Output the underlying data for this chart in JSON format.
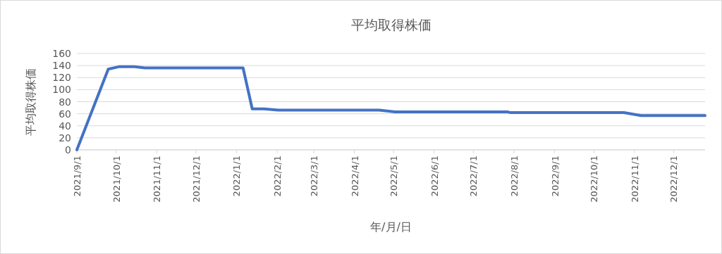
{
  "chart_data": {
    "type": "line",
    "title": "平均取得株価",
    "xlabel": "年/月/日",
    "ylabel": "平均取得株価",
    "grid": "y",
    "marker": "none",
    "line_style": "solid",
    "x": [
      "2021-09-01",
      "2021-09-25",
      "2021-10-03",
      "2021-10-15",
      "2021-10-23",
      "2022-01-06",
      "2022-01-13",
      "2022-01-22",
      "2022-02-02",
      "2022-04-20",
      "2022-05-02",
      "2022-07-27",
      "2022-07-29",
      "2022-10-24",
      "2022-11-06",
      "2022-12-25"
    ],
    "series": [
      {
        "color": "#4472c4",
        "values": [
          0,
          134,
          138,
          138,
          136,
          136,
          68,
          68,
          66,
          66,
          63,
          63,
          62,
          62,
          57,
          57
        ]
      }
    ],
    "xlim": [
      "2021-09-01",
      "2022-12-25"
    ],
    "ylim": [
      0,
      160
    ],
    "yticks": [
      0,
      20,
      40,
      60,
      80,
      100,
      120,
      140,
      160
    ],
    "xticks": [
      {
        "value": "2021-09-01",
        "label": "2021/9/1"
      },
      {
        "value": "2021-10-01",
        "label": "2021/10/1"
      },
      {
        "value": "2021-11-01",
        "label": "2021/11/1"
      },
      {
        "value": "2021-12-01",
        "label": "2021/12/1"
      },
      {
        "value": "2022-01-01",
        "label": "2022/1/1"
      },
      {
        "value": "2022-02-01",
        "label": "2022/2/1"
      },
      {
        "value": "2022-03-01",
        "label": "2022/3/1"
      },
      {
        "value": "2022-04-01",
        "label": "2022/4/1"
      },
      {
        "value": "2022-05-01",
        "label": "2022/5/1"
      },
      {
        "value": "2022-06-01",
        "label": "2022/6/1"
      },
      {
        "value": "2022-07-01",
        "label": "2022/7/1"
      },
      {
        "value": "2022-08-01",
        "label": "2022/8/1"
      },
      {
        "value": "2022-09-01",
        "label": "2022/9/1"
      },
      {
        "value": "2022-10-01",
        "label": "2022/10/1"
      },
      {
        "value": "2022-11-01",
        "label": "2022/11/1"
      },
      {
        "value": "2022-12-01",
        "label": "2022/12/1"
      }
    ]
  }
}
